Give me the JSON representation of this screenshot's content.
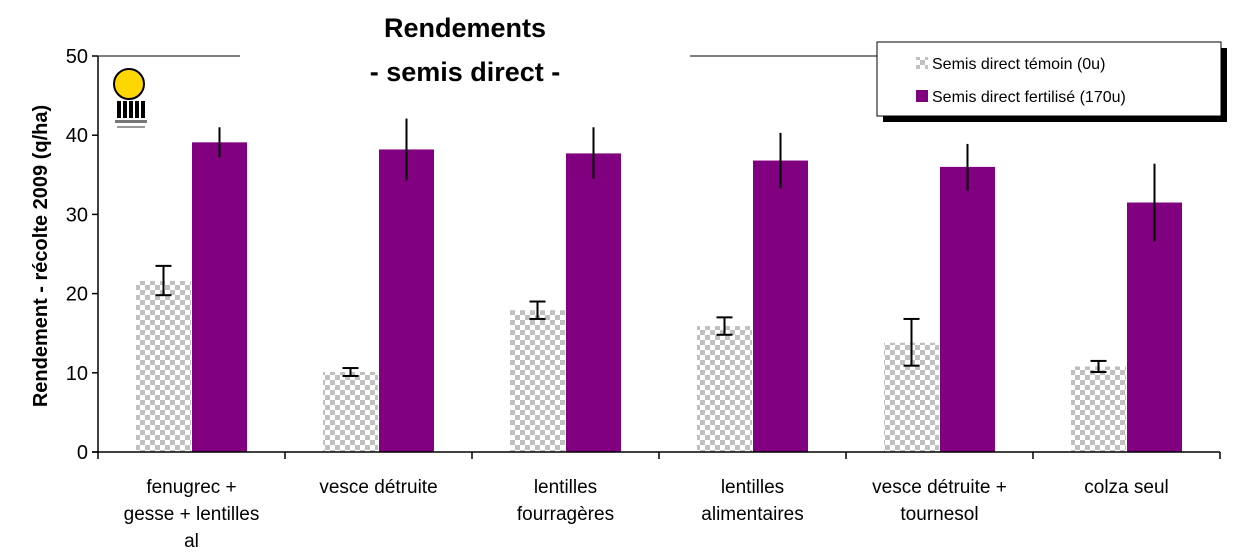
{
  "chart_data": {
    "type": "bar",
    "title": [
      "Rendements",
      "- semis direct -"
    ],
    "ylabel": "Rendement - récolte 2009 (q/ha)",
    "xlabel": "",
    "ylim": [
      0,
      50
    ],
    "yticks": [
      0,
      10,
      20,
      30,
      40,
      50
    ],
    "grid": false,
    "legend_position": "top-right",
    "categories": [
      [
        "fenugrec +",
        "gesse + lentilles",
        "al"
      ],
      [
        "vesce détruite"
      ],
      [
        "lentilles",
        "fourragères"
      ],
      [
        "lentilles",
        "alimentaires"
      ],
      [
        "vesce détruite +",
        "tournesol"
      ],
      [
        "colza seul"
      ]
    ],
    "series": [
      {
        "name": "Semis direct témoin (0u)",
        "color": "#c0c0c0",
        "pattern": "checkerboard",
        "values": [
          21.6,
          10.1,
          17.9,
          15.9,
          13.8,
          10.8
        ],
        "error_low": [
          19.8,
          9.6,
          16.8,
          14.8,
          10.9,
          10.1
        ],
        "error_high": [
          23.5,
          10.6,
          19.0,
          17.0,
          16.8,
          11.5
        ]
      },
      {
        "name": "Semis direct fertilisé (170u)",
        "color": "#800080",
        "pattern": "solid",
        "values": [
          39.1,
          38.2,
          37.7,
          36.8,
          36.0,
          31.5
        ],
        "error_low": [
          37.2,
          34.3,
          34.5,
          33.3,
          33.0,
          26.6
        ],
        "error_high": [
          41.0,
          42.1,
          41.0,
          40.3,
          38.9,
          36.4
        ]
      }
    ]
  }
}
